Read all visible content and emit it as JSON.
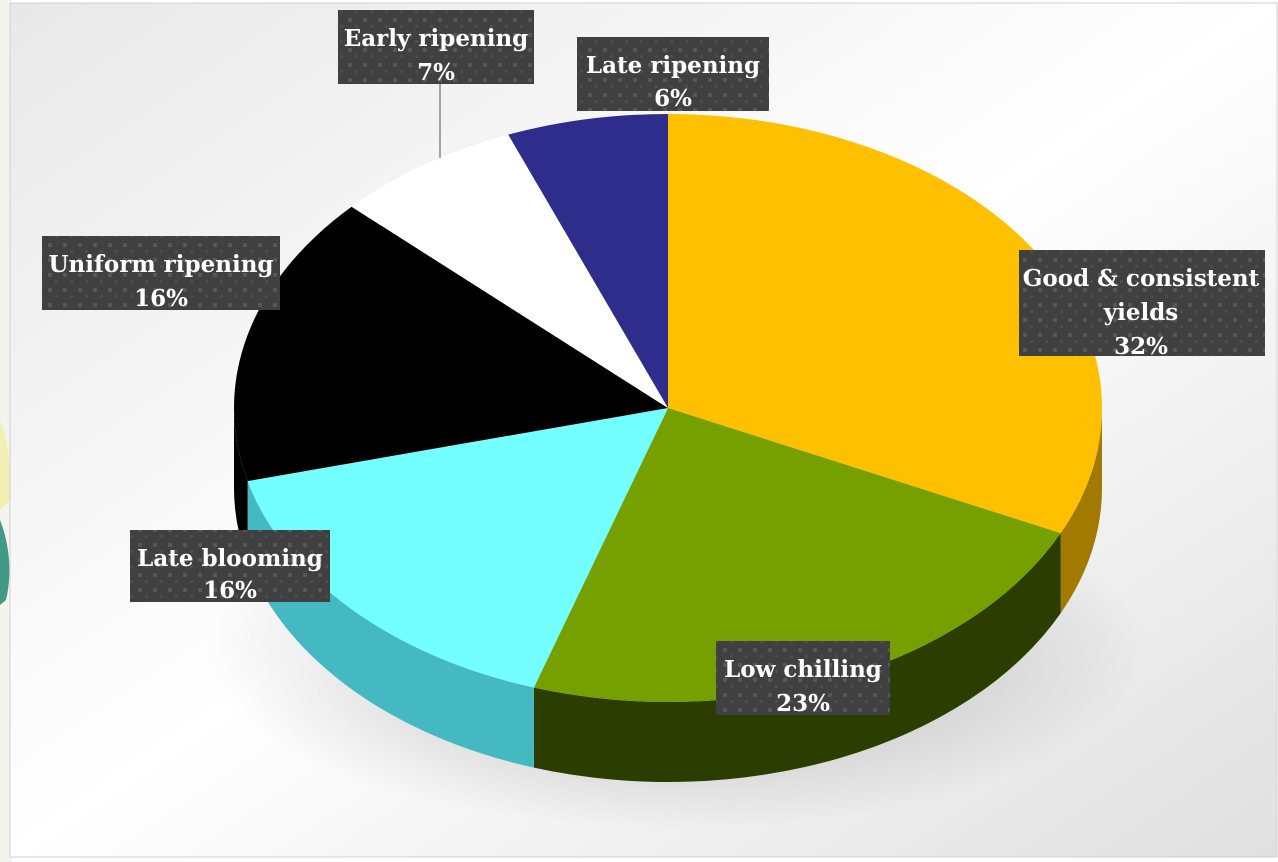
{
  "chart_data": {
    "type": "pie",
    "style": "3d",
    "slices": [
      {
        "label": "Good & consistent yields",
        "value": 32,
        "percent_label": "32%",
        "color": "#ffc000",
        "side_color": "#a27a00"
      },
      {
        "label": "Low chilling",
        "value": 23,
        "percent_label": "23%",
        "color": "#76a000",
        "side_color": "#2c3d00"
      },
      {
        "label": "Late blooming",
        "value": 16,
        "percent_label": "16%",
        "color": "#73ffff",
        "side_color": "#45b9c2"
      },
      {
        "label": "Uniform ripening",
        "value": 16,
        "percent_label": "16%",
        "color": "#000000",
        "side_color": "#000000"
      },
      {
        "label": "Early ripening",
        "value": 7,
        "percent_label": "7%",
        "color": "#ffffff",
        "side_color": "#d9d9d9"
      },
      {
        "label": "Late ripening",
        "value": 6,
        "percent_label": "6%",
        "color": "#2e2d8c",
        "side_color": "#1b1a55"
      }
    ],
    "label_box_color": "#404040",
    "legend": "none"
  }
}
